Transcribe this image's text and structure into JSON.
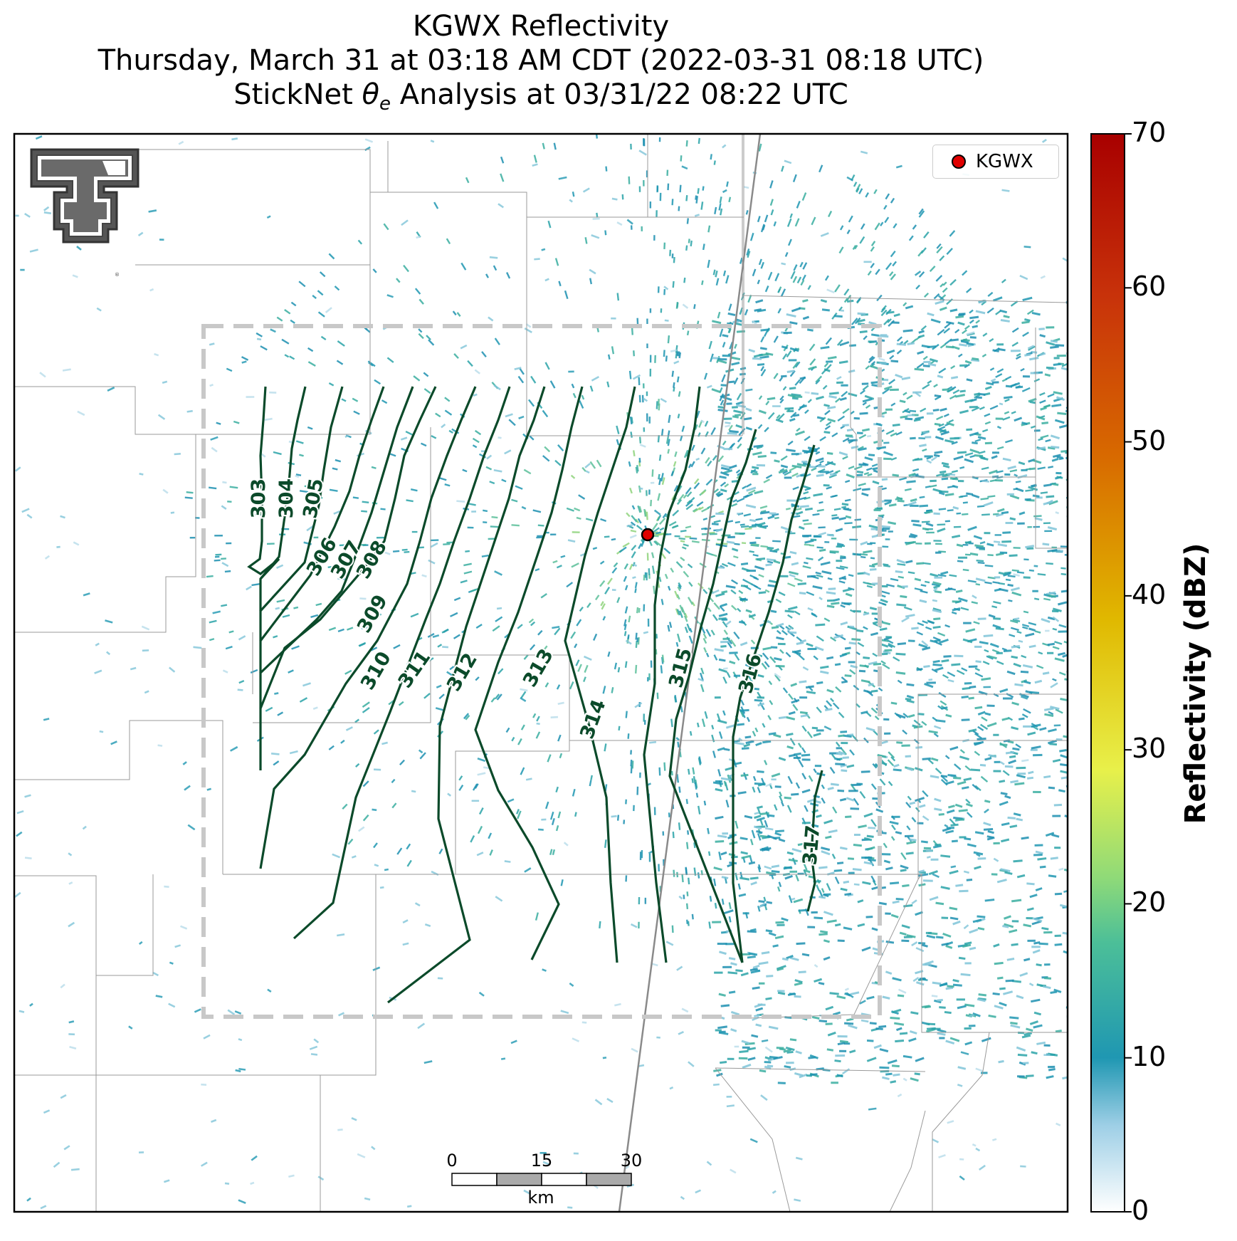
{
  "title": {
    "line1": "KGWX Reflectivity",
    "line2": "Thursday, March 31 at 03:18 AM CDT (2022-03-31 08:18 UTC)",
    "line3_prefix": "StickNet ",
    "line3_symbol": "θ",
    "line3_subscript": "e",
    "line3_suffix": " Analysis at 03/31/22 08:22 UTC"
  },
  "legend": {
    "label": "KGWX",
    "marker_color": "#e00000"
  },
  "colorbar": {
    "label": "Reflectivity (dBZ)",
    "ticks": [
      "0",
      "10",
      "20",
      "30",
      "40",
      "50",
      "60",
      "70"
    ],
    "range": [
      0,
      70
    ],
    "colors": [
      "#ffffff",
      "#1f97b2",
      "#a8e07a",
      "#e8f04a",
      "#e0b800",
      "#d86a00",
      "#c8320a",
      "#a80000"
    ]
  },
  "contours": {
    "color": "#0b4a2a",
    "levels": [
      "303",
      "304",
      "305",
      "306",
      "307",
      "308",
      "309",
      "310",
      "311",
      "312",
      "313",
      "314",
      "315",
      "316",
      "317"
    ]
  },
  "scalebar": {
    "ticks": [
      "0",
      "15",
      "30"
    ],
    "unit": "km"
  },
  "logo": {
    "text": "TT"
  }
}
